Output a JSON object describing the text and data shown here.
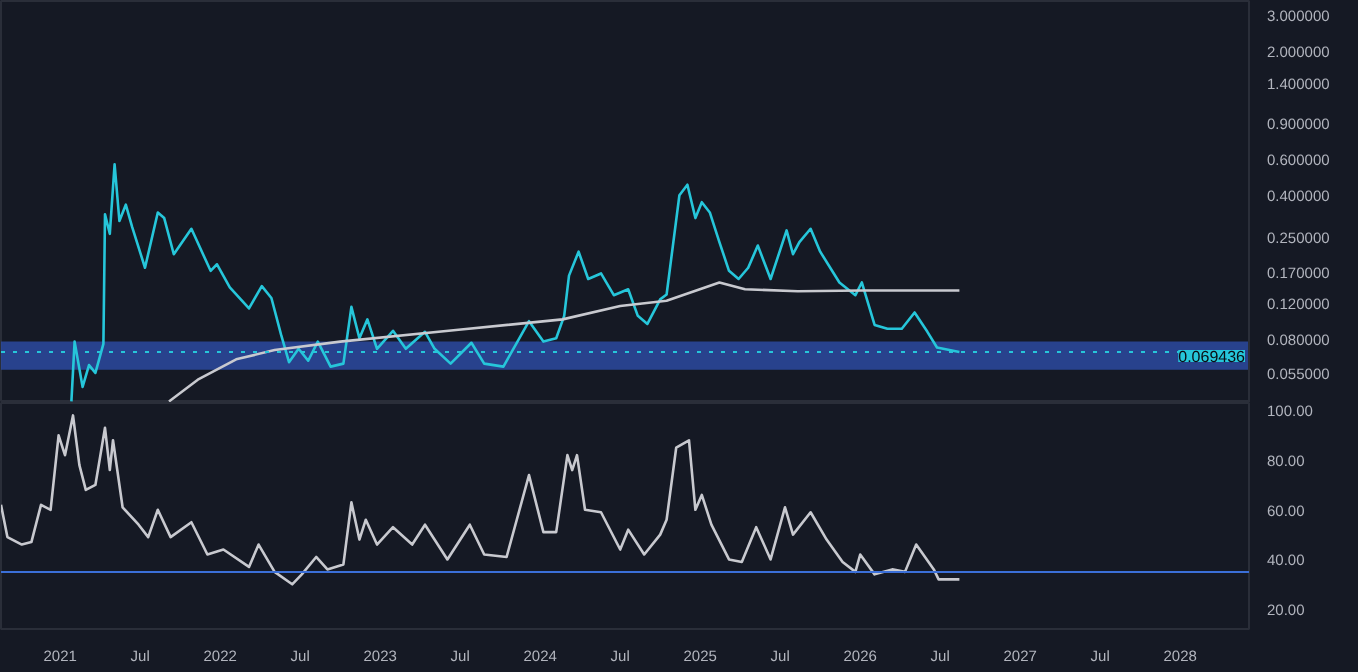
{
  "chart_data": [
    {
      "type": "line",
      "log": true,
      "tick_labels": "y",
      "grid": false,
      "xlim": [
        2020.63,
        2028.43
      ],
      "ylim": [
        0.0393,
        3.5
      ],
      "yticks": [
        {
          "value": 0.055,
          "label": "0.055000"
        },
        {
          "value": 0.08,
          "label": "0.080000"
        },
        {
          "value": 0.12,
          "label": "0.120000"
        },
        {
          "value": 0.17,
          "label": "0.170000"
        },
        {
          "value": 0.25,
          "label": "0.250000"
        },
        {
          "value": 0.4,
          "label": "0.400000"
        },
        {
          "value": 0.6,
          "label": "0.600000"
        },
        {
          "value": 0.9,
          "label": "0.900000"
        },
        {
          "value": 1.4,
          "label": "1.400000"
        },
        {
          "value": 2.0,
          "label": "2.000000"
        },
        {
          "value": 3.0,
          "label": "3.000000"
        }
      ],
      "bands": [
        {
          "axis": "y",
          "from": 0.057,
          "to": 0.078,
          "color": "#2b4aa0"
        }
      ],
      "ref_lines": [
        {
          "axis": "y",
          "value": 0.069436,
          "label": "0.069436",
          "color": "#26c6da",
          "line_style": "dotted"
        }
      ],
      "series": [
        {
          "color": "#26c6da",
          "x": [
            2021.07,
            2021.09,
            2021.14,
            2021.18,
            2021.22,
            2021.27,
            2021.28,
            2021.31,
            2021.34,
            2021.37,
            2021.41,
            2021.45,
            2021.53,
            2021.61,
            2021.65,
            2021.71,
            2021.82,
            2021.94,
            2021.98,
            2022.06,
            2022.18,
            2022.26,
            2022.32,
            2022.38,
            2022.43,
            2022.49,
            2022.55,
            2022.61,
            2022.69,
            2022.77,
            2022.82,
            2022.87,
            2022.92,
            2022.98,
            2023.08,
            2023.16,
            2023.28,
            2023.34,
            2023.44,
            2023.57,
            2023.65,
            2023.77,
            2023.85,
            2023.93,
            2024.02,
            2024.1,
            2024.15,
            2024.18,
            2024.24,
            2024.3,
            2024.38,
            2024.46,
            2024.55,
            2024.61,
            2024.67,
            2024.75,
            2024.79,
            2024.87,
            2024.92,
            2024.97,
            2025.01,
            2025.06,
            2025.12,
            2025.18,
            2025.24,
            2025.3,
            2025.36,
            2025.44,
            2025.54,
            2025.58,
            2025.62,
            2025.69,
            2025.75,
            2025.87,
            2025.97,
            2026.01,
            2026.09,
            2026.17,
            2026.26,
            2026.34,
            2026.42,
            2026.48,
            2026.62
          ],
          "values": [
            0.04,
            0.078,
            0.047,
            0.06,
            0.055,
            0.076,
            0.323,
            0.26,
            0.565,
            0.3,
            0.36,
            0.28,
            0.178,
            0.33,
            0.31,
            0.207,
            0.275,
            0.172,
            0.185,
            0.143,
            0.113,
            0.145,
            0.127,
            0.0845,
            0.062,
            0.072,
            0.063,
            0.078,
            0.059,
            0.061,
            0.115,
            0.081,
            0.1,
            0.072,
            0.088,
            0.072,
            0.087,
            0.072,
            0.061,
            0.077,
            0.061,
            0.059,
            0.076,
            0.098,
            0.078,
            0.081,
            0.104,
            0.163,
            0.213,
            0.157,
            0.167,
            0.131,
            0.14,
            0.104,
            0.095,
            0.125,
            0.132,
            0.4,
            0.45,
            0.31,
            0.37,
            0.33,
            0.237,
            0.172,
            0.157,
            0.178,
            0.228,
            0.157,
            0.27,
            0.207,
            0.237,
            0.275,
            0.213,
            0.151,
            0.131,
            0.151,
            0.094,
            0.09,
            0.09,
            0.108,
            0.087,
            0.073,
            0.069436
          ]
        },
        {
          "color": "#c8c9cf",
          "x": [
            2021.68,
            2021.86,
            2022.1,
            2022.34,
            2022.75,
            2023.49,
            2024.14,
            2024.5,
            2024.79,
            2025.12,
            2025.28,
            2025.61,
            2026.01,
            2026.62
          ],
          "values": [
            0.04,
            0.051,
            0.064,
            0.071,
            0.078,
            0.089,
            0.1,
            0.116,
            0.123,
            0.151,
            0.14,
            0.137,
            0.138,
            0.138
          ]
        }
      ]
    },
    {
      "type": "line",
      "grid": false,
      "xlim": [
        2020.63,
        2028.43
      ],
      "ylim": [
        12,
        103
      ],
      "yticks": [
        {
          "value": 20,
          "label": "20.00"
        },
        {
          "value": 40,
          "label": "40.00"
        },
        {
          "value": 60,
          "label": "60.00"
        },
        {
          "value": 80,
          "label": "80.00"
        },
        {
          "value": 100,
          "label": "100.00"
        }
      ],
      "xticks": [
        {
          "value": 2021,
          "label": "2021"
        },
        {
          "value": 2021.5,
          "label": "Jul"
        },
        {
          "value": 2022,
          "label": "2022"
        },
        {
          "value": 2022.5,
          "label": "Jul"
        },
        {
          "value": 2023,
          "label": "2023"
        },
        {
          "value": 2023.5,
          "label": "Jul"
        },
        {
          "value": 2024,
          "label": "2024"
        },
        {
          "value": 2024.5,
          "label": "Jul"
        },
        {
          "value": 2025,
          "label": "2025"
        },
        {
          "value": 2025.5,
          "label": "Jul"
        },
        {
          "value": 2026,
          "label": "2026"
        },
        {
          "value": 2026.5,
          "label": "Jul"
        },
        {
          "value": 2027,
          "label": "2027"
        },
        {
          "value": 2027.5,
          "label": "Jul"
        },
        {
          "value": 2028,
          "label": "2028"
        }
      ],
      "ref_lines": [
        {
          "axis": "y",
          "value": 35,
          "color": "#3b6fd8"
        }
      ],
      "series": [
        {
          "color": "#c8c9cf",
          "x": [
            2020.63,
            2020.67,
            2020.76,
            2020.82,
            2020.88,
            2020.94,
            2020.99,
            2021.03,
            2021.08,
            2021.12,
            2021.16,
            2021.22,
            2021.28,
            2021.31,
            2021.33,
            2021.39,
            2021.49,
            2021.55,
            2021.61,
            2021.69,
            2021.82,
            2021.92,
            2022.02,
            2022.18,
            2022.24,
            2022.34,
            2022.45,
            2022.51,
            2022.6,
            2022.67,
            2022.77,
            2022.82,
            2022.87,
            2022.91,
            2022.98,
            2023.08,
            2023.2,
            2023.28,
            2023.42,
            2023.56,
            2023.65,
            2023.79,
            2023.93,
            2024.02,
            2024.1,
            2024.17,
            2024.2,
            2024.23,
            2024.28,
            2024.38,
            2024.5,
            2024.55,
            2024.65,
            2024.75,
            2024.79,
            2024.85,
            2024.93,
            2024.97,
            2025.01,
            2025.07,
            2025.18,
            2025.26,
            2025.35,
            2025.44,
            2025.53,
            2025.58,
            2025.69,
            2025.79,
            2025.89,
            2025.97,
            2026.0,
            2026.09,
            2026.2,
            2026.28,
            2026.35,
            2026.46,
            2026.49,
            2026.62
          ],
          "values": [
            62,
            49,
            46,
            47,
            62,
            60,
            90,
            82,
            98,
            78,
            68,
            70,
            93,
            76,
            88,
            61,
            54,
            49,
            60,
            49,
            55,
            42,
            44,
            37,
            46,
            35,
            30,
            34,
            41,
            36,
            38,
            63,
            48,
            56,
            46,
            53,
            46,
            54,
            40,
            54,
            42,
            41,
            74,
            51,
            51,
            82,
            76,
            82,
            60,
            59,
            44,
            52,
            42,
            50,
            56,
            85,
            88,
            60,
            66,
            54,
            40,
            39,
            53,
            40,
            61,
            50,
            59,
            48,
            39,
            35,
            42,
            34,
            36,
            35,
            46,
            36,
            32,
            32
          ]
        }
      ]
    }
  ]
}
